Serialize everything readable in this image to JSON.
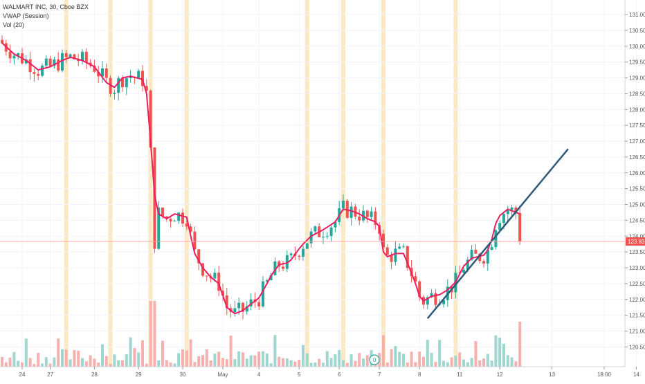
{
  "legend": {
    "symbol_line": "WALMART INC, 30, Cboe BZX",
    "vwap_line": "VWAP (Session)",
    "vol_line": "Vol (20)"
  },
  "price_tag": "123.83",
  "event_marker": "0",
  "colors": {
    "up": "#26a69a",
    "down": "#ef5350",
    "vwap": "#e91e63",
    "trendline": "#2e5a7a",
    "session_band": "#fbe9c4",
    "price_line": "#f4a6a6",
    "vol_up": "#9fd6cf",
    "vol_down": "#f6b0ae"
  },
  "chart_data": {
    "type": "candlestick",
    "y_ticks": [
      "120.50",
      "121.00",
      "121.50",
      "122.00",
      "122.50",
      "123.00",
      "123.50",
      "124.00",
      "124.50",
      "125.00",
      "125.50",
      "126.00",
      "126.50",
      "127.00",
      "127.50",
      "128.00",
      "128.50",
      "129.00",
      "129.50",
      "130.00",
      "130.50",
      "131.00"
    ],
    "x_ticks": [
      {
        "label": "24",
        "bar": 5
      },
      {
        "label": "27",
        "bar": 12
      },
      {
        "label": "28",
        "bar": 23
      },
      {
        "label": "29",
        "bar": 34
      },
      {
        "label": "30",
        "bar": 45
      },
      {
        "label": "May",
        "bar": 55
      },
      {
        "label": "4",
        "bar": 64
      },
      {
        "label": "5",
        "bar": 74
      },
      {
        "label": "6",
        "bar": 84
      },
      {
        "label": "7",
        "bar": 94
      },
      {
        "label": "8",
        "bar": 104
      },
      {
        "label": "11",
        "bar": 114
      },
      {
        "label": "12",
        "bar": 124
      },
      {
        "label": "13",
        "bar": 137
      },
      {
        "label": "18:00",
        "bar": 150
      },
      {
        "label": "14",
        "bar": 158
      }
    ],
    "session_bars": [
      16,
      27,
      37,
      46,
      76,
      85,
      95,
      113
    ],
    "current_price": 123.83,
    "trendline": [
      {
        "bar": 106,
        "price": 121.4
      },
      {
        "bar": 141,
        "price": 126.75
      }
    ],
    "vwap_key_points": [
      [
        0,
        130.1
      ],
      [
        3,
        129.75
      ],
      [
        6,
        129.55
      ],
      [
        9,
        129.25
      ],
      [
        12,
        129.35
      ],
      [
        15,
        129.55
      ],
      [
        17,
        129.65
      ],
      [
        20,
        129.55
      ],
      [
        23,
        129.35
      ],
      [
        26,
        128.85
      ],
      [
        28,
        128.7
      ],
      [
        30,
        129.0
      ],
      [
        32,
        129.05
      ],
      [
        35,
        128.95
      ],
      [
        36,
        128.5
      ],
      [
        37,
        127.0
      ],
      [
        38,
        125.3
      ],
      [
        39,
        124.7
      ],
      [
        41,
        124.55
      ],
      [
        43,
        124.7
      ],
      [
        46,
        124.6
      ],
      [
        47,
        124.0
      ],
      [
        48,
        123.45
      ],
      [
        50,
        123.0
      ],
      [
        52,
        122.7
      ],
      [
        54,
        122.5
      ],
      [
        56,
        121.75
      ],
      [
        58,
        121.55
      ],
      [
        60,
        121.65
      ],
      [
        62,
        121.85
      ],
      [
        64,
        122.05
      ],
      [
        66,
        122.5
      ],
      [
        67,
        122.75
      ],
      [
        69,
        123.1
      ],
      [
        71,
        123.15
      ],
      [
        72,
        123.25
      ],
      [
        74,
        123.6
      ],
      [
        75,
        123.75
      ],
      [
        77,
        124.0
      ],
      [
        80,
        124.2
      ],
      [
        83,
        124.45
      ],
      [
        85,
        124.85
      ],
      [
        87,
        124.8
      ],
      [
        89,
        124.7
      ],
      [
        91,
        124.55
      ],
      [
        93,
        124.45
      ],
      [
        94,
        124.3
      ],
      [
        95,
        123.5
      ],
      [
        96,
        123.35
      ],
      [
        98,
        123.45
      ],
      [
        100,
        123.45
      ],
      [
        101,
        123.15
      ],
      [
        103,
        122.5
      ],
      [
        104,
        122.1
      ],
      [
        105,
        121.95
      ],
      [
        107,
        122.1
      ],
      [
        109,
        122.15
      ],
      [
        111,
        122.3
      ],
      [
        113,
        122.55
      ],
      [
        115,
        123.05
      ],
      [
        117,
        123.3
      ],
      [
        120,
        123.4
      ],
      [
        121,
        123.55
      ],
      [
        122,
        123.9
      ],
      [
        123,
        124.4
      ],
      [
        124,
        124.65
      ],
      [
        126,
        124.85
      ],
      [
        128,
        124.75
      ],
      [
        129,
        124.7
      ]
    ]
  }
}
